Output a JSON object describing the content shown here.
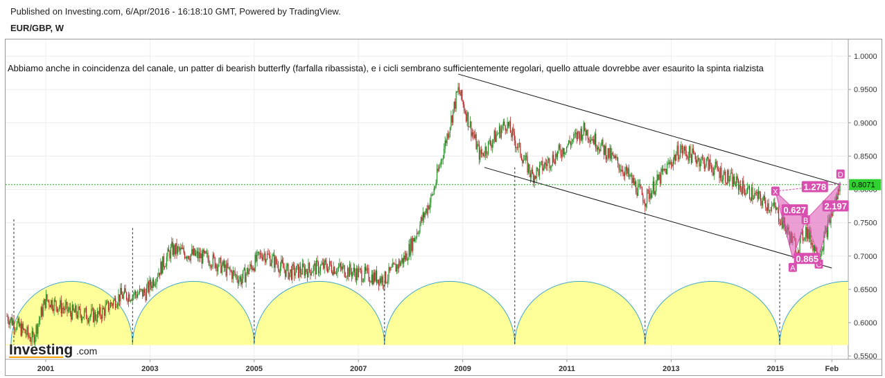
{
  "header": {
    "published": "Published on Investing.com, 6/Apr/2016 - 16:18:10 GMT, Powered by TradingView.",
    "symbol": "EUR/GBP, W"
  },
  "annotation": "Abbiamo anche in coincidenza del canale, un patter di bearish butterfly (farfalla ribassista), e i cicli sembrano sufficientemente regolari, quello attuale dovrebbe aver esaurito la spinta rialzista",
  "logo": {
    "main": "Investing",
    "sub": ".com"
  },
  "colors": {
    "up": "#1f8b1f",
    "down": "#b22222",
    "cycle_fill": "#ffff99",
    "cycle_stroke": "#3aa5c8",
    "pattern": "#d94fb0",
    "price_line": "#22b022"
  },
  "chart_data": {
    "type": "candlestick",
    "timeframe": "W",
    "ylim": [
      0.545,
      1.025
    ],
    "yticks": [
      "1.0000",
      "0.9500",
      "0.9000",
      "0.8500",
      "0.8000",
      "0.7500",
      "0.7000",
      "0.6500",
      "0.6000",
      "0.5500"
    ],
    "xticks": [
      "2001",
      "2003",
      "2005",
      "2007",
      "2009",
      "2011",
      "2013",
      "2015",
      "Feb"
    ],
    "last_price": "0.8071",
    "price_path": [
      {
        "t": "2000-04",
        "v": 0.61
      },
      {
        "t": "2000-10",
        "v": 0.575
      },
      {
        "t": "2001-01",
        "v": 0.635
      },
      {
        "t": "2001-07",
        "v": 0.615
      },
      {
        "t": "2002-01",
        "v": 0.61
      },
      {
        "t": "2002-06",
        "v": 0.64
      },
      {
        "t": "2002-12",
        "v": 0.645
      },
      {
        "t": "2003-06",
        "v": 0.71
      },
      {
        "t": "2004-03",
        "v": 0.695
      },
      {
        "t": "2004-10",
        "v": 0.665
      },
      {
        "t": "2005-03",
        "v": 0.705
      },
      {
        "t": "2005-09",
        "v": 0.675
      },
      {
        "t": "2006-06",
        "v": 0.685
      },
      {
        "t": "2007-07",
        "v": 0.665
      },
      {
        "t": "2007-12",
        "v": 0.7
      },
      {
        "t": "2008-06",
        "v": 0.79
      },
      {
        "t": "2008-12",
        "v": 0.95
      },
      {
        "t": "2009-05",
        "v": 0.85
      },
      {
        "t": "2009-11",
        "v": 0.9
      },
      {
        "t": "2010-05",
        "v": 0.82
      },
      {
        "t": "2010-12",
        "v": 0.86
      },
      {
        "t": "2011-05",
        "v": 0.89
      },
      {
        "t": "2012-02",
        "v": 0.83
      },
      {
        "t": "2012-07",
        "v": 0.785
      },
      {
        "t": "2013-03",
        "v": 0.86
      },
      {
        "t": "2013-09",
        "v": 0.84
      },
      {
        "t": "2014-06",
        "v": 0.8
      },
      {
        "t": "2015-01",
        "v": 0.77
      },
      {
        "t": "2015-06",
        "v": 0.71
      },
      {
        "t": "2015-08",
        "v": 0.74
      },
      {
        "t": "2015-11",
        "v": 0.7
      },
      {
        "t": "2016-04",
        "v": 0.8071
      }
    ],
    "channel": {
      "upper": [
        {
          "t": "2008-12",
          "v": 0.973
        },
        {
          "t": "2016-04",
          "v": 0.807
        }
      ],
      "lower": [
        {
          "t": "2009-06",
          "v": 0.833
        },
        {
          "t": "2016-02",
          "v": 0.682
        }
      ]
    },
    "cycle_lows": [
      "2000-05",
      "2002-09",
      "2005-01",
      "2007-07",
      "2010-01",
      "2012-07",
      "2015-02"
    ],
    "pattern": {
      "name": "bearish butterfly",
      "points": [
        {
          "label": "X",
          "t": "2015-01",
          "v": 0.797
        },
        {
          "label": "A",
          "t": "2015-05",
          "v": 0.697
        },
        {
          "label": "B",
          "t": "2015-08",
          "v": 0.754
        },
        {
          "label": "C",
          "t": "2015-11",
          "v": 0.7
        },
        {
          "label": "D",
          "t": "2016-04",
          "v": 0.809
        }
      ],
      "ratios": [
        "1.278",
        "0.627",
        "2.197",
        "0.865"
      ]
    }
  }
}
